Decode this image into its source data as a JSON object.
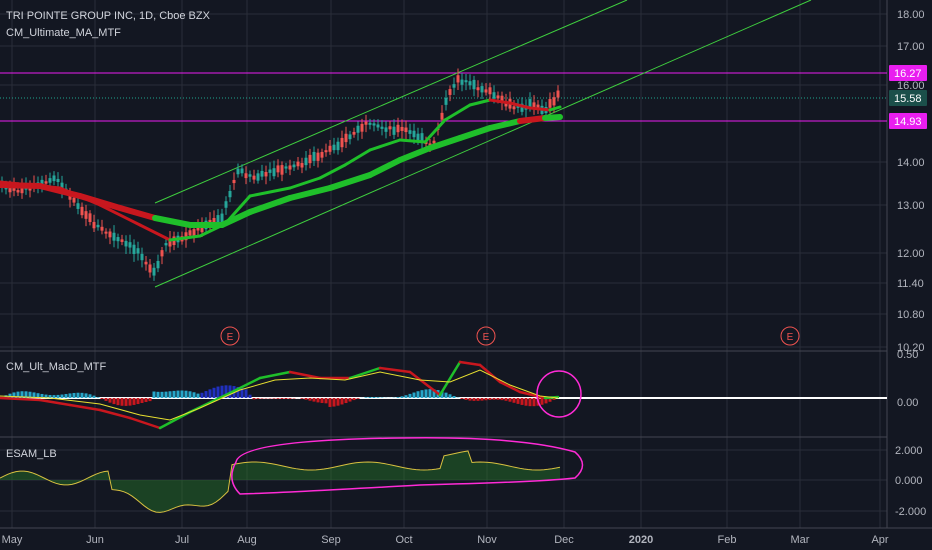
{
  "header": {
    "symbol_title": "TRI POINTE GROUP INC, 1D, Cboe BZX",
    "indicator_main": "CM_Ultimate_MA_MTF"
  },
  "panes": {
    "macd_title": "CM_Ult_MacD_MTF",
    "esam_title": "ESAM_LB"
  },
  "price_axis": {
    "ticks": [
      "18.00",
      "17.00",
      "16.00",
      "14.00",
      "13.00",
      "12.00",
      "11.40",
      "10.80",
      "10.20"
    ],
    "badges": [
      {
        "text": "16.27",
        "color": "#e91ef0"
      },
      {
        "text": "15.58",
        "color": "#1b4f4a"
      },
      {
        "text": "14.93",
        "color": "#e91ef0"
      }
    ]
  },
  "macd_axis": {
    "ticks": [
      "0.50",
      "0.00"
    ]
  },
  "esam_axis": {
    "ticks": [
      "2.000",
      "0.000",
      "-2.000"
    ]
  },
  "time_axis": {
    "labels": [
      "May",
      "Jun",
      "Jul",
      "Aug",
      "Sep",
      "Oct",
      "Nov",
      "Dec",
      "2020",
      "Feb",
      "Mar",
      "Apr"
    ]
  },
  "earnings_marker": "E",
  "colors": {
    "background": "#131722",
    "up_candle": "#26a69a",
    "down_candle": "#ef5350",
    "ma_green": "#1fbf2a",
    "ma_red": "#c8171e",
    "channel": "#3fcf3f",
    "hline_magenta": "#e91ef0",
    "hline_teal": "#1fa58f",
    "annotation": "#ff2bd6"
  }
}
